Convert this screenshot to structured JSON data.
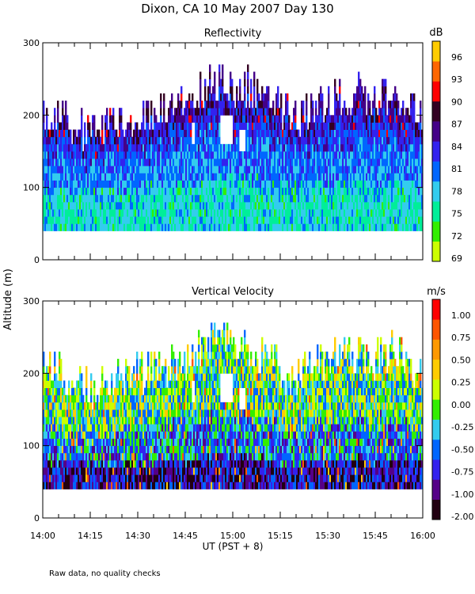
{
  "figure": {
    "title": "Dixon, CA 10 May 2007  Day 130",
    "y_label": "Altitude (m)",
    "x_label": "UT  (PST + 8)",
    "footnote": "Raw data, no quality checks"
  },
  "chart_data": [
    {
      "type": "heatmap",
      "title": "Reflectivity",
      "colorbar_unit": "dB",
      "colorbar_ticks": [
        "96",
        "93",
        "90",
        "87",
        "84",
        "81",
        "78",
        "75",
        "72",
        "69"
      ],
      "colorbar_range": [
        69,
        98
      ],
      "colorscale": [
        "#ccff00",
        "#33ee00",
        "#00ee99",
        "#33ccee",
        "#0066ff",
        "#3322ee",
        "#440088",
        "#330022",
        "#ff0000",
        "#ff6600",
        "#ffcc00"
      ],
      "x_ticks": [
        "14:00",
        "14:15",
        "14:30",
        "14:45",
        "15:00",
        "15:15",
        "15:30",
        "15:45",
        "16:00"
      ],
      "x_range_minutes": [
        0,
        120
      ],
      "y_ticks": [
        "0",
        "100",
        "200",
        "300"
      ],
      "y_range_m": [
        0,
        300
      ],
      "data_altitude_range_m": [
        40,
        280
      ],
      "cloud_top_profile": [
        {
          "t": 0,
          "top": 200
        },
        {
          "t": 5,
          "top": 195
        },
        {
          "t": 10,
          "top": 180
        },
        {
          "t": 15,
          "top": 170
        },
        {
          "t": 20,
          "top": 180
        },
        {
          "t": 25,
          "top": 190
        },
        {
          "t": 30,
          "top": 195
        },
        {
          "t": 35,
          "top": 200
        },
        {
          "t": 40,
          "top": 200
        },
        {
          "t": 45,
          "top": 210
        },
        {
          "t": 50,
          "top": 230
        },
        {
          "t": 55,
          "top": 240
        },
        {
          "t": 60,
          "top": 240
        },
        {
          "t": 65,
          "top": 230
        },
        {
          "t": 70,
          "top": 220
        },
        {
          "t": 75,
          "top": 200
        },
        {
          "t": 80,
          "top": 190
        },
        {
          "t": 85,
          "top": 200
        },
        {
          "t": 90,
          "top": 220
        },
        {
          "t": 95,
          "top": 225
        },
        {
          "t": 100,
          "top": 220
        },
        {
          "t": 105,
          "top": 215
        },
        {
          "t": 110,
          "top": 225
        },
        {
          "t": 115,
          "top": 210
        },
        {
          "t": 120,
          "top": 190
        }
      ],
      "gaps": [
        {
          "t0": 56,
          "t1": 60,
          "z0": 160,
          "z1": 200
        },
        {
          "t0": 62,
          "t1": 64,
          "z0": 150,
          "z1": 180
        },
        {
          "t0": 47,
          "t1": 48,
          "z0": 160,
          "z1": 190
        }
      ]
    },
    {
      "type": "heatmap",
      "title": "Vertical Velocity",
      "colorbar_unit": "m/s",
      "colorbar_ticks": [
        "1.00",
        "0.75",
        "0.50",
        "0.25",
        "0.00",
        "-0.25",
        "-0.50",
        "-0.75",
        "-1.00",
        "-2.00"
      ],
      "colorbar_range": [
        -2.0,
        1.25
      ],
      "colorscale": [
        "#220011",
        "#550088",
        "#3322ee",
        "#0066ff",
        "#33ccee",
        "#33ee00",
        "#ccff00",
        "#ffcc00",
        "#ff9900",
        "#ff5500",
        "#ff0000"
      ],
      "x_ticks": [
        "14:00",
        "14:15",
        "14:30",
        "14:45",
        "15:00",
        "15:15",
        "15:30",
        "15:45",
        "16:00"
      ],
      "x_range_minutes": [
        0,
        120
      ],
      "y_ticks": [
        "0",
        "100",
        "200",
        "300"
      ],
      "y_range_m": [
        0,
        300
      ],
      "data_altitude_range_m": [
        40,
        280
      ],
      "cloud_top_profile": [
        {
          "t": 0,
          "top": 200
        },
        {
          "t": 5,
          "top": 195
        },
        {
          "t": 10,
          "top": 180
        },
        {
          "t": 15,
          "top": 170
        },
        {
          "t": 20,
          "top": 180
        },
        {
          "t": 25,
          "top": 190
        },
        {
          "t": 30,
          "top": 195
        },
        {
          "t": 35,
          "top": 200
        },
        {
          "t": 40,
          "top": 200
        },
        {
          "t": 45,
          "top": 210
        },
        {
          "t": 50,
          "top": 230
        },
        {
          "t": 55,
          "top": 240
        },
        {
          "t": 60,
          "top": 240
        },
        {
          "t": 65,
          "top": 230
        },
        {
          "t": 70,
          "top": 220
        },
        {
          "t": 75,
          "top": 200
        },
        {
          "t": 80,
          "top": 190
        },
        {
          "t": 85,
          "top": 200
        },
        {
          "t": 90,
          "top": 220
        },
        {
          "t": 95,
          "top": 225
        },
        {
          "t": 100,
          "top": 220
        },
        {
          "t": 105,
          "top": 215
        },
        {
          "t": 110,
          "top": 225
        },
        {
          "t": 115,
          "top": 210
        },
        {
          "t": 120,
          "top": 190
        }
      ],
      "gaps": [
        {
          "t0": 56,
          "t1": 60,
          "z0": 160,
          "z1": 200
        },
        {
          "t0": 62,
          "t1": 64,
          "z0": 150,
          "z1": 180
        },
        {
          "t0": 47,
          "t1": 48,
          "z0": 160,
          "z1": 190
        }
      ]
    }
  ]
}
